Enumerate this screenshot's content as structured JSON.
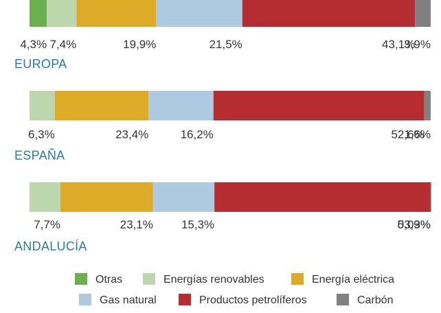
{
  "chart_data": {
    "type": "stacked-bar-horizontal",
    "categories": [
      "EUROPA",
      "ESPAÑA",
      "ANDALUCÍA"
    ],
    "series": [
      {
        "name": "Otras",
        "color": "#6ab04c",
        "values": [
          4.3,
          0,
          0
        ]
      },
      {
        "name": "Energías renovables",
        "color": "#bcd7ad",
        "values": [
          7.4,
          6.3,
          7.7
        ]
      },
      {
        "name": "Energía eléctrica",
        "color": "#ddab27",
        "values": [
          19.9,
          23.4,
          23.1
        ]
      },
      {
        "name": "Gas natural",
        "color": "#aecae0",
        "values": [
          21.5,
          16.2,
          15.3
        ]
      },
      {
        "name": "Productos petrolíferos",
        "color": "#b52d31",
        "values": [
          43.1,
          52.6,
          53.9
        ]
      },
      {
        "name": "Carbón",
        "color": "#808080",
        "values": [
          3.9,
          1.6,
          0.03
        ]
      }
    ],
    "labels": [
      [
        "4,3%",
        "7,4%",
        "19,9%",
        "21,5%",
        "43,1%",
        "3,9%"
      ],
      [
        "",
        "6,3%",
        "23,4%",
        "16,2%",
        "52,6%",
        "1,6%"
      ],
      [
        "",
        "7,7%",
        "23,1%",
        "15,3%",
        "53,9%",
        "0,03%"
      ]
    ],
    "xlim": [
      0,
      100
    ],
    "legend": "bottom",
    "grid": false
  }
}
